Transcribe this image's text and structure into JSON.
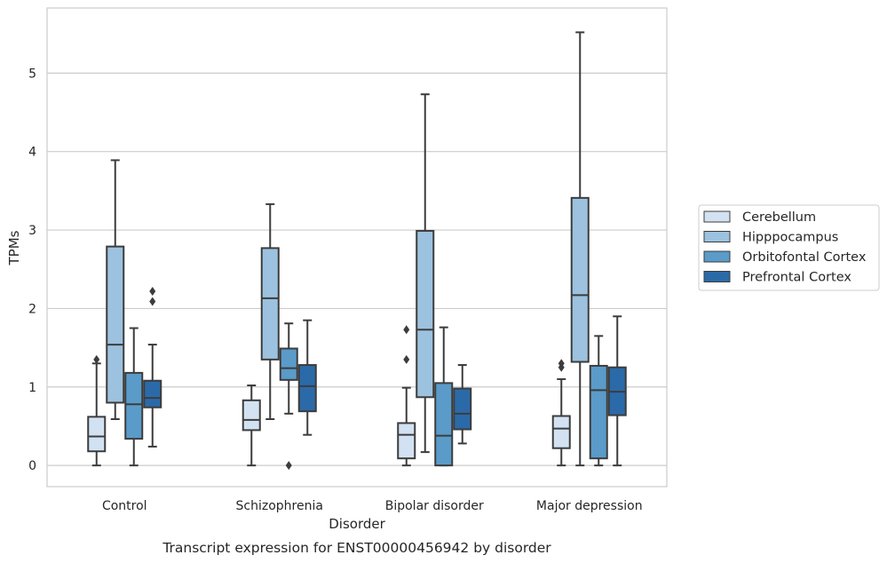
{
  "chart_data": {
    "type": "box",
    "caption": "Transcript expression for ENST00000456942 by disorder",
    "xlabel": "Disorder",
    "ylabel": "TPMs",
    "ylim": [
      -0.27,
      5.83
    ],
    "yticks": [
      0,
      1,
      2,
      3,
      4,
      5
    ],
    "grid": "horizontal",
    "legend_position": "right",
    "categories": [
      "Control",
      "Schizophrenia",
      "Bipolar disorder",
      "Major depression"
    ],
    "series": [
      {
        "name": "Cerebellum",
        "color": "#d3e2f2",
        "boxes": [
          {
            "whisker_low": 0.0,
            "q1": 0.18,
            "median": 0.37,
            "q3": 0.62,
            "whisker_high": 1.3,
            "outliers": [
              1.35
            ]
          },
          {
            "whisker_low": 0.0,
            "q1": 0.45,
            "median": 0.58,
            "q3": 0.83,
            "whisker_high": 1.02,
            "outliers": []
          },
          {
            "whisker_low": 0.0,
            "q1": 0.09,
            "median": 0.39,
            "q3": 0.54,
            "whisker_high": 0.99,
            "outliers": [
              1.35,
              1.73
            ]
          },
          {
            "whisker_low": 0.0,
            "q1": 0.22,
            "median": 0.47,
            "q3": 0.63,
            "whisker_high": 1.1,
            "outliers": [
              1.25,
              1.3
            ]
          }
        ]
      },
      {
        "name": "Hipppocampus",
        "color": "#9cc2df",
        "boxes": [
          {
            "whisker_low": 0.59,
            "q1": 0.8,
            "median": 1.54,
            "q3": 2.79,
            "whisker_high": 3.89,
            "outliers": []
          },
          {
            "whisker_low": 0.59,
            "q1": 1.35,
            "median": 2.13,
            "q3": 2.77,
            "whisker_high": 3.33,
            "outliers": []
          },
          {
            "whisker_low": 0.17,
            "q1": 0.87,
            "median": 1.73,
            "q3": 2.99,
            "whisker_high": 4.73,
            "outliers": []
          },
          {
            "whisker_low": 0.0,
            "q1": 1.32,
            "median": 2.17,
            "q3": 3.41,
            "whisker_high": 5.52,
            "outliers": []
          }
        ]
      },
      {
        "name": "Orbitofontal Cortex",
        "color": "#5a9bc9",
        "boxes": [
          {
            "whisker_low": 0.0,
            "q1": 0.34,
            "median": 0.78,
            "q3": 1.18,
            "whisker_high": 1.75,
            "outliers": []
          },
          {
            "whisker_low": 0.66,
            "q1": 1.09,
            "median": 1.24,
            "q3": 1.49,
            "whisker_high": 1.81,
            "outliers": [
              0.0
            ]
          },
          {
            "whisker_low": 0.0,
            "q1": 0.0,
            "median": 0.38,
            "q3": 1.05,
            "whisker_high": 1.76,
            "outliers": []
          },
          {
            "whisker_low": 0.0,
            "q1": 0.09,
            "median": 0.96,
            "q3": 1.27,
            "whisker_high": 1.65,
            "outliers": []
          }
        ]
      },
      {
        "name": "Prefrontal Cortex",
        "color": "#2b6aa8",
        "boxes": [
          {
            "whisker_low": 0.24,
            "q1": 0.74,
            "median": 0.86,
            "q3": 1.08,
            "whisker_high": 1.54,
            "outliers": [
              2.09,
              2.22
            ]
          },
          {
            "whisker_low": 0.39,
            "q1": 0.69,
            "median": 1.01,
            "q3": 1.28,
            "whisker_high": 1.85,
            "outliers": []
          },
          {
            "whisker_low": 0.28,
            "q1": 0.46,
            "median": 0.66,
            "q3": 0.98,
            "whisker_high": 1.28,
            "outliers": []
          },
          {
            "whisker_low": 0.0,
            "q1": 0.64,
            "median": 0.94,
            "q3": 1.25,
            "whisker_high": 1.9,
            "outliers": []
          }
        ]
      }
    ]
  }
}
